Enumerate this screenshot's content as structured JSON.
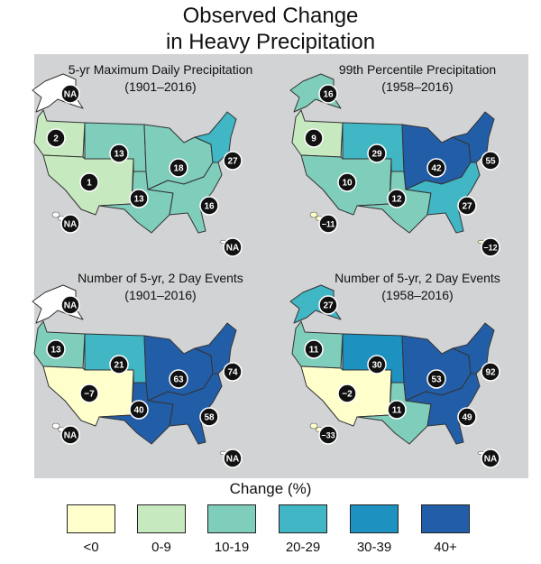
{
  "title": {
    "line1": "Observed Change",
    "line2": "in Heavy Precipitation"
  },
  "colors": {
    "background_panel": "#d1d3d4",
    "bin_lt0": "#ffffcc",
    "bin_0_9": "#c7e9c0",
    "bin_10_19": "#7fcdbb",
    "bin_20_29": "#41b6c4",
    "bin_30_39": "#1d91c0",
    "bin_40plus": "#225ea8",
    "no_data": "#ffffff"
  },
  "panels": [
    {
      "title": "5-yr Maximum Daily Precipitation",
      "period": "(1901–2016)",
      "regions": {
        "alaska": "NA",
        "hawaii": "NA",
        "northwest": "2",
        "southwest": "1",
        "northern_great_plains": "13",
        "southern_great_plains": "13",
        "midwest": "18",
        "northeast": "27",
        "southeast": "16",
        "caribbean": "NA"
      }
    },
    {
      "title": "99th Percentile Precipitation",
      "period": "(1958–2016)",
      "regions": {
        "alaska": "16",
        "hawaii": "−11",
        "northwest": "9",
        "southwest": "10",
        "northern_great_plains": "29",
        "southern_great_plains": "12",
        "midwest": "42",
        "northeast": "55",
        "southeast": "27",
        "caribbean": "−12"
      }
    },
    {
      "title": "Number of  5-yr, 2 Day Events",
      "period": "(1901–2016)",
      "regions": {
        "alaska": "NA",
        "hawaii": "NA",
        "northwest": "13",
        "southwest": "−7",
        "northern_great_plains": "21",
        "southern_great_plains": "40",
        "midwest": "63",
        "northeast": "74",
        "southeast": "58",
        "caribbean": "NA"
      }
    },
    {
      "title": "Number of  5-yr, 2 Day Events",
      "period": "(1958–2016)",
      "regions": {
        "alaska": "27",
        "hawaii": "−33",
        "northwest": "11",
        "southwest": "−2",
        "northern_great_plains": "30",
        "southern_great_plains": "11",
        "midwest": "53",
        "northeast": "92",
        "southeast": "49",
        "caribbean": "NA"
      }
    }
  ],
  "legend": {
    "title": "Change (%)",
    "bins": [
      {
        "label": "<0",
        "color": "#ffffcc"
      },
      {
        "label": "0-9",
        "color": "#c7e9c0"
      },
      {
        "label": "10-19",
        "color": "#7fcdbb"
      },
      {
        "label": "20-29",
        "color": "#41b6c4"
      },
      {
        "label": "30-39",
        "color": "#1d91c0"
      },
      {
        "label": "40+",
        "color": "#225ea8"
      }
    ]
  }
}
